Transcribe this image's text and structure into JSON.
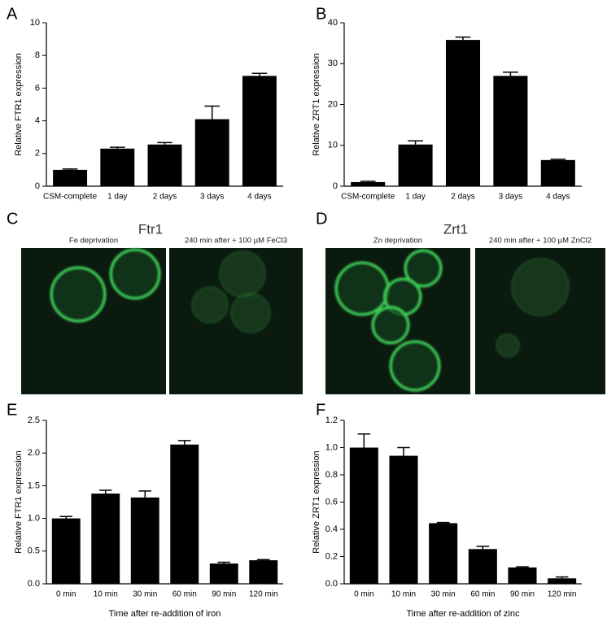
{
  "chart_data": [
    {
      "type": "bar",
      "panel": "A",
      "ylabel": "Relative FTR1 expression",
      "color": "#000000",
      "categories": [
        "CSM-complete",
        "1 day",
        "2 days",
        "3 days",
        "4 days"
      ],
      "values": [
        1.0,
        2.3,
        2.55,
        4.1,
        6.75
      ],
      "errors": [
        0.05,
        0.08,
        0.12,
        0.8,
        0.15
      ],
      "ylim": [
        0,
        10
      ],
      "yticks": [
        0,
        2,
        4,
        6,
        8,
        10
      ]
    },
    {
      "type": "bar",
      "panel": "B",
      "ylabel": "Relative ZRT1 expression",
      "color": "#000000",
      "categories": [
        "CSM-complete",
        "1 day",
        "2 days",
        "3 days",
        "4 days"
      ],
      "values": [
        1.0,
        10.2,
        35.8,
        27.0,
        6.4
      ],
      "errors": [
        0.2,
        0.9,
        0.7,
        0.9,
        0.2
      ],
      "ylim": [
        0,
        40
      ],
      "yticks": [
        0,
        10,
        20,
        30,
        40
      ]
    },
    {
      "type": "bar",
      "panel": "E",
      "ylabel": "Relative FTR1 expression",
      "xlabel": "Time after re-addition of iron",
      "color": "#000000",
      "categories": [
        "0 min",
        "10 min",
        "30 min",
        "60 min",
        "90 min",
        "120 min"
      ],
      "values": [
        1.0,
        1.38,
        1.32,
        2.13,
        0.31,
        0.36
      ],
      "errors": [
        0.03,
        0.05,
        0.1,
        0.06,
        0.02,
        0.01
      ],
      "ylim": [
        0,
        2.5
      ],
      "yticks": [
        {
          "value": 0,
          "label": "0.0"
        },
        0.5,
        {
          "value": 1,
          "label": "1.0"
        },
        1.5,
        {
          "value": 2,
          "label": "2.0"
        },
        2.5
      ]
    },
    {
      "type": "bar",
      "panel": "F",
      "ylabel": "Relative ZRT1 expression",
      "xlabel": "Time after re-addition of zinc",
      "color": "#000000",
      "categories": [
        "0 min",
        "10 min",
        "30 min",
        "60 min",
        "90 min",
        "120 min"
      ],
      "values": [
        1.0,
        0.94,
        0.445,
        0.255,
        0.12,
        0.04
      ],
      "errors": [
        0.1,
        0.06,
        0.005,
        0.02,
        0.005,
        0.01
      ],
      "ylim": [
        0,
        1.2
      ],
      "yticks": [
        {
          "value": 0,
          "label": "0.0"
        },
        0.2,
        0.4,
        0.6,
        0.8,
        {
          "value": 1,
          "label": "1.0"
        },
        1.2
      ]
    }
  ],
  "microscopy": [
    {
      "panel": "C",
      "title": "Ftr1",
      "images": [
        "Fe deprivation",
        "240 min after + 100 µM FeCl3"
      ]
    },
    {
      "panel": "D",
      "title": "Zrt1",
      "images": [
        "Zn deprivation",
        "240 min after + 100 µM ZnCl2"
      ]
    }
  ]
}
